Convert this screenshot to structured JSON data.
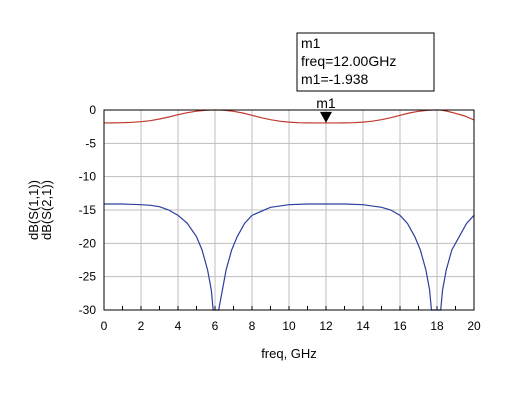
{
  "chart_data": {
    "type": "line",
    "xlabel": "freq, GHz",
    "ylabel_parts": [
      "dB(S(1,1))",
      "dB(S(2,1))"
    ],
    "xlim": [
      0,
      20
    ],
    "ylim": [
      -30,
      0
    ],
    "x_ticks": [
      0,
      2,
      4,
      6,
      8,
      10,
      12,
      14,
      16,
      18,
      20
    ],
    "y_ticks": [
      0,
      -5,
      -10,
      -15,
      -20,
      -25,
      -30
    ],
    "grid": true,
    "series": [
      {
        "name": "dB(S(2,1))",
        "color": "#c0392b",
        "x": [
          0,
          0.5,
          1,
          1.5,
          2,
          2.5,
          3,
          3.5,
          4,
          4.5,
          5,
          5.5,
          5.8,
          6,
          6.2,
          6.5,
          7,
          7.5,
          8,
          8.5,
          9,
          9.5,
          10,
          10.5,
          11,
          11.5,
          12,
          12.5,
          13,
          13.5,
          14,
          14.5,
          15,
          15.5,
          16,
          16.5,
          17,
          17.5,
          17.8,
          18,
          18.2,
          18.5,
          19,
          19.5,
          20
        ],
        "y": [
          -1.94,
          -1.93,
          -1.9,
          -1.85,
          -1.75,
          -1.6,
          -1.35,
          -1.05,
          -0.7,
          -0.4,
          -0.18,
          -0.04,
          -0.01,
          0,
          -0.01,
          -0.05,
          -0.2,
          -0.45,
          -0.8,
          -1.15,
          -1.45,
          -1.68,
          -1.82,
          -1.9,
          -1.93,
          -1.94,
          -1.938,
          -1.94,
          -1.93,
          -1.9,
          -1.82,
          -1.68,
          -1.45,
          -1.15,
          -0.8,
          -0.45,
          -0.2,
          -0.05,
          -0.01,
          0,
          -0.01,
          -0.15,
          -0.5,
          -0.9,
          -1.5
        ]
      },
      {
        "name": "dB(S(1,1))",
        "color": "#2c3e9e",
        "x": [
          0,
          1,
          2,
          2.5,
          3,
          3.5,
          4,
          4.5,
          5,
          5.3,
          5.6,
          5.8,
          5.9,
          6.2,
          6.4,
          6.6,
          6.9,
          7.2,
          7.6,
          8,
          9,
          10,
          11,
          12,
          13,
          14,
          15,
          15.5,
          16,
          16.4,
          16.8,
          17.1,
          17.4,
          17.6,
          17.7,
          18.2,
          18.3,
          18.5,
          18.8,
          19.2,
          19.6,
          20
        ],
        "y": [
          -14.1,
          -14.1,
          -14.2,
          -14.3,
          -14.5,
          -15.0,
          -15.8,
          -17.0,
          -19.0,
          -21.0,
          -24.0,
          -27.0,
          -30,
          -30,
          -27.0,
          -24.0,
          -21.0,
          -19.0,
          -17.0,
          -15.8,
          -14.6,
          -14.2,
          -14.1,
          -14.1,
          -14.1,
          -14.2,
          -14.6,
          -15.0,
          -15.8,
          -17.0,
          -19.0,
          -21.0,
          -24.0,
          -27.0,
          -30,
          -30,
          -27.0,
          -24.0,
          -21.0,
          -19.0,
          -17.0,
          -15.8
        ]
      }
    ],
    "marker": {
      "name": "m1",
      "lines": [
        "m1",
        "freq=12.00GHz",
        "m1=-1.938"
      ],
      "x": 12.0,
      "y": -1.938
    }
  }
}
